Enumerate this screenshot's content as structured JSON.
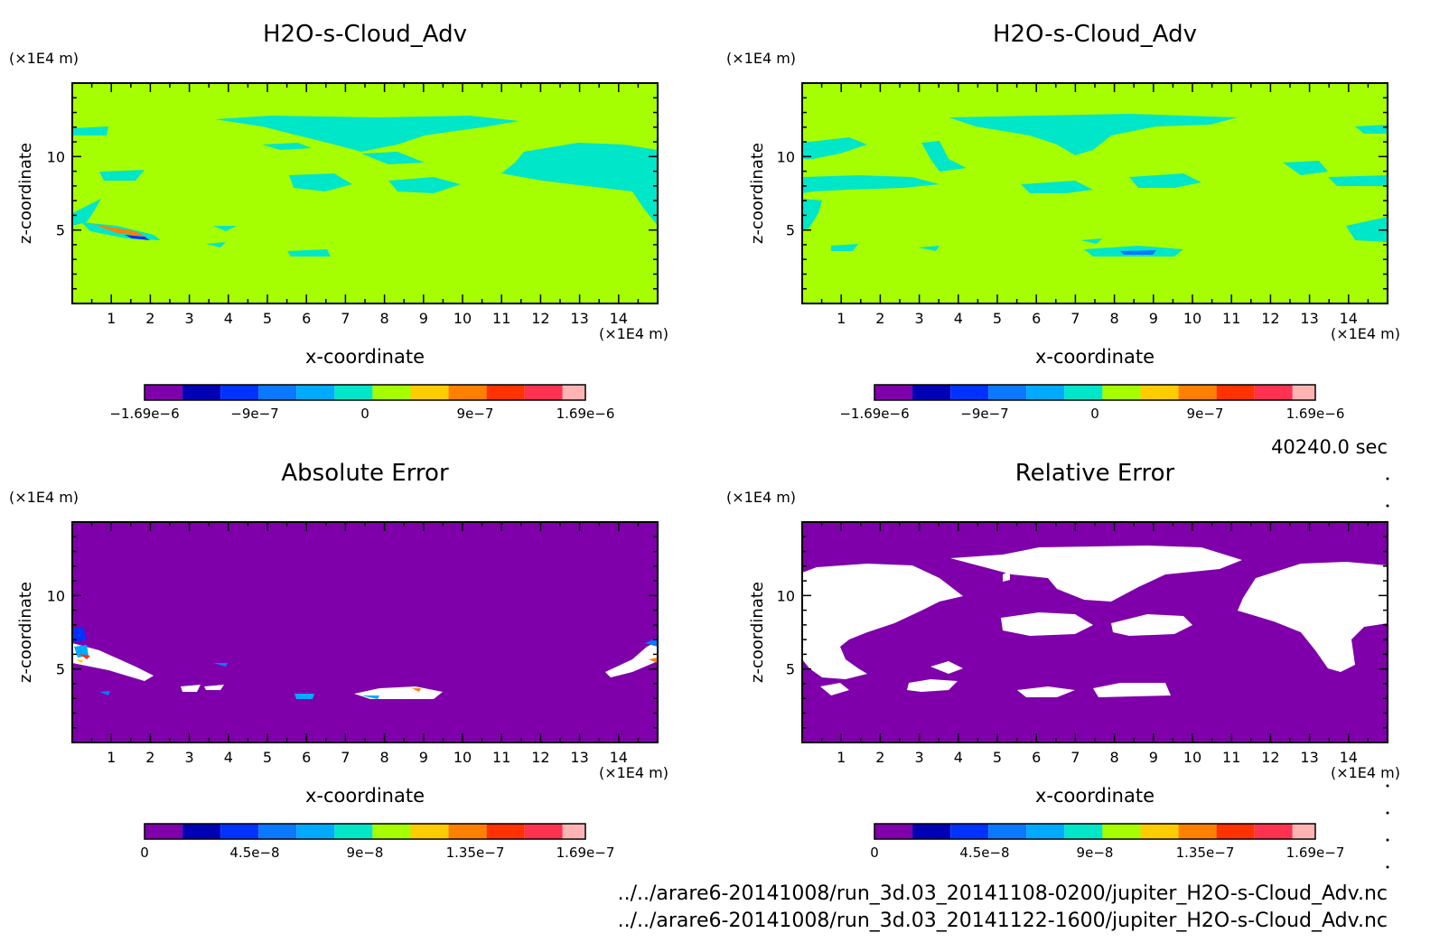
{
  "time_label": "40240.0 sec",
  "files": [
    "../../arare6-20141008/run_3d.03_20141108-0200/jupiter_H2O-s-Cloud_Adv.nc",
    "../../arare6-20141008/run_3d.03_20141122-1600/jupiter_H2O-s-Cloud_Adv.nc"
  ],
  "chart_data": [
    {
      "type": "heatmap",
      "title": "H2O-s-Cloud_Adv",
      "xlabel": "x-coordinate",
      "ylabel": "z-coordinate",
      "x_unit": "(×1E4 m)",
      "y_unit": "(×1E4 m)",
      "xlim": [
        0,
        15
      ],
      "ylim": [
        0,
        15
      ],
      "x_ticks": [
        "1",
        "2",
        "3",
        "4",
        "5",
        "6",
        "7",
        "8",
        "9",
        "10",
        "11",
        "12",
        "13",
        "14"
      ],
      "y_ticks": [
        "5",
        "10"
      ],
      "background_color": "#a6ff00",
      "colorbar_colors": [
        "#7f00aa",
        "#0000b4",
        "#0032ff",
        "#0a78ff",
        "#00aaff",
        "#00e6c8",
        "#a6ff00",
        "#ffcc00",
        "#ff8000",
        "#ff3200",
        "#ff3250",
        "#ffb4b4"
      ],
      "colorbar_ticks": [
        "−1.69e−6",
        "−9e−7",
        "0",
        "9e−7",
        "1.69e−6"
      ]
    },
    {
      "type": "heatmap",
      "title": "H2O-s-Cloud_Adv",
      "xlabel": "x-coordinate",
      "ylabel": "z-coordinate",
      "x_unit": "(×1E4 m)",
      "y_unit": "(×1E4 m)",
      "xlim": [
        0,
        15
      ],
      "ylim": [
        0,
        15
      ],
      "x_ticks": [
        "1",
        "2",
        "3",
        "4",
        "5",
        "6",
        "7",
        "8",
        "9",
        "10",
        "11",
        "12",
        "13",
        "14"
      ],
      "y_ticks": [
        "5",
        "10"
      ],
      "background_color": "#a6ff00",
      "colorbar_colors": [
        "#7f00aa",
        "#0000b4",
        "#0032ff",
        "#0a78ff",
        "#00aaff",
        "#00e6c8",
        "#a6ff00",
        "#ffcc00",
        "#ff8000",
        "#ff3200",
        "#ff3250",
        "#ffb4b4"
      ],
      "colorbar_ticks": [
        "−1.69e−6",
        "−9e−7",
        "0",
        "9e−7",
        "1.69e−6"
      ]
    },
    {
      "type": "heatmap",
      "title": "Absolute Error",
      "xlabel": "x-coordinate",
      "ylabel": "z-coordinate",
      "x_unit": "(×1E4 m)",
      "y_unit": "(×1E4 m)",
      "xlim": [
        0,
        15
      ],
      "ylim": [
        0,
        15
      ],
      "x_ticks": [
        "1",
        "2",
        "3",
        "4",
        "5",
        "6",
        "7",
        "8",
        "9",
        "10",
        "11",
        "12",
        "13",
        "14"
      ],
      "y_ticks": [
        "5",
        "10"
      ],
      "background_color": "#7f00aa",
      "colorbar_colors": [
        "#7f00aa",
        "#0000b4",
        "#0032ff",
        "#0a78ff",
        "#00aaff",
        "#00e6c8",
        "#a6ff00",
        "#ffcc00",
        "#ff8000",
        "#ff3200",
        "#ff3250",
        "#ffb4b4"
      ],
      "colorbar_ticks": [
        "0",
        "4.5e−8",
        "9e−8",
        "1.35e−7",
        "1.69e−7"
      ]
    },
    {
      "type": "heatmap",
      "title": "Relative Error",
      "xlabel": "x-coordinate",
      "ylabel": "z-coordinate",
      "x_unit": "(×1E4 m)",
      "y_unit": "(×1E4 m)",
      "xlim": [
        0,
        15
      ],
      "ylim": [
        0,
        15
      ],
      "x_ticks": [
        "1",
        "2",
        "3",
        "4",
        "5",
        "6",
        "7",
        "8",
        "9",
        "10",
        "11",
        "12",
        "13",
        "14"
      ],
      "y_ticks": [
        "5",
        "10"
      ],
      "background_color": "#7f00aa",
      "colorbar_colors": [
        "#7f00aa",
        "#0000b4",
        "#0032ff",
        "#0a78ff",
        "#00aaff",
        "#00e6c8",
        "#a6ff00",
        "#ffcc00",
        "#ff8000",
        "#ff3200",
        "#ff3250",
        "#ffb4b4"
      ],
      "colorbar_ticks": [
        "0",
        "4.5e−8",
        "9e−8",
        "1.35e−7",
        "1.69e−7"
      ]
    }
  ]
}
